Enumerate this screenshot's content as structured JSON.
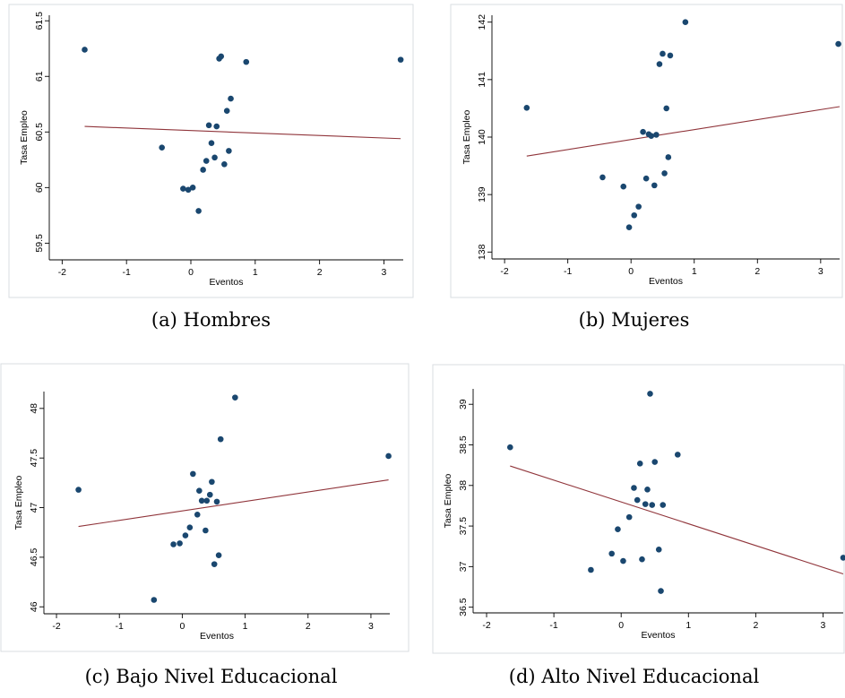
{
  "chart_data": [
    {
      "type": "scatter",
      "caption": "(a) Hombres",
      "xlabel": "Eventos",
      "ylabel": "Tasa Empleo",
      "xlim": [
        -2.2,
        3.3
      ],
      "ylim": [
        59.35,
        61.55
      ],
      "xticks": [
        -2,
        -1,
        0,
        1,
        2,
        3
      ],
      "yticks": [
        59.5,
        60,
        60.5,
        61,
        61.5
      ],
      "ytick_labels": [
        "59.5",
        "60",
        "60.5",
        "61",
        "61.5"
      ],
      "points": [
        [
          -1.65,
          61.24
        ],
        [
          -0.45,
          60.36
        ],
        [
          -0.12,
          59.99
        ],
        [
          -0.04,
          59.98
        ],
        [
          0.03,
          60.0
        ],
        [
          0.12,
          59.79
        ],
        [
          0.19,
          60.16
        ],
        [
          0.24,
          60.24
        ],
        [
          0.28,
          60.56
        ],
        [
          0.32,
          60.4
        ],
        [
          0.37,
          60.27
        ],
        [
          0.4,
          60.55
        ],
        [
          0.44,
          61.16
        ],
        [
          0.47,
          61.18
        ],
        [
          0.52,
          60.21
        ],
        [
          0.56,
          60.69
        ],
        [
          0.59,
          60.33
        ],
        [
          0.62,
          60.8
        ],
        [
          0.86,
          61.13
        ],
        [
          3.26,
          61.15
        ]
      ],
      "fit_line": [
        [
          -1.65,
          60.55
        ],
        [
          3.26,
          60.44
        ]
      ]
    },
    {
      "type": "scatter",
      "caption": "(b) Mujeres",
      "xlabel": "Eventos",
      "ylabel": "Tasa Empleo",
      "xlim": [
        -2.2,
        3.3
      ],
      "ylim": [
        137.88,
        142.12
      ],
      "xticks": [
        -2,
        -1,
        0,
        1,
        2,
        3
      ],
      "yticks": [
        138,
        139,
        140,
        141,
        142
      ],
      "ytick_labels": [
        "138",
        "139",
        "140",
        "141",
        "142"
      ],
      "points": [
        [
          -1.65,
          140.51
        ],
        [
          -0.45,
          139.3
        ],
        [
          -0.12,
          139.14
        ],
        [
          -0.03,
          138.43
        ],
        [
          0.05,
          138.64
        ],
        [
          0.12,
          138.79
        ],
        [
          0.19,
          140.09
        ],
        [
          0.24,
          139.28
        ],
        [
          0.28,
          140.05
        ],
        [
          0.32,
          140.02
        ],
        [
          0.37,
          139.16
        ],
        [
          0.4,
          140.04
        ],
        [
          0.45,
          141.27
        ],
        [
          0.5,
          141.45
        ],
        [
          0.53,
          139.37
        ],
        [
          0.56,
          140.5
        ],
        [
          0.59,
          139.65
        ],
        [
          0.62,
          141.42
        ],
        [
          0.86,
          142.0
        ],
        [
          3.28,
          141.62
        ]
      ],
      "fit_line": [
        [
          -1.65,
          139.67
        ],
        [
          3.3,
          140.53
        ]
      ]
    },
    {
      "type": "scatter",
      "caption": "(c) Bajo Nivel Educacional",
      "xlabel": "Eventos",
      "ylabel": "Tasa Empleo",
      "xlim": [
        -2.2,
        3.3
      ],
      "ylim": [
        45.93,
        48.17
      ],
      "xticks": [
        -2,
        -1,
        0,
        1,
        2,
        3
      ],
      "yticks": [
        46,
        46.5,
        47,
        47.5,
        48
      ],
      "ytick_labels": [
        "46",
        "46.5",
        "47",
        "47.5",
        "48"
      ],
      "points": [
        [
          -1.65,
          47.18
        ],
        [
          -0.45,
          46.07
        ],
        [
          -0.14,
          46.63
        ],
        [
          -0.04,
          46.64
        ],
        [
          0.05,
          46.72
        ],
        [
          0.12,
          46.8
        ],
        [
          0.17,
          47.34
        ],
        [
          0.24,
          46.93
        ],
        [
          0.27,
          47.17
        ],
        [
          0.31,
          47.07
        ],
        [
          0.37,
          46.77
        ],
        [
          0.39,
          47.07
        ],
        [
          0.44,
          47.13
        ],
        [
          0.47,
          47.26
        ],
        [
          0.51,
          46.43
        ],
        [
          0.55,
          47.06
        ],
        [
          0.58,
          46.52
        ],
        [
          0.61,
          47.69
        ],
        [
          0.84,
          48.11
        ],
        [
          3.28,
          47.52
        ]
      ],
      "fit_line": [
        [
          -1.65,
          46.81
        ],
        [
          3.28,
          47.28
        ]
      ]
    },
    {
      "type": "scatter",
      "caption": "(d) Alto Nivel Educacional",
      "xlabel": "Eventos",
      "ylabel": "Tasa Empleo",
      "xlim": [
        -2.2,
        3.3
      ],
      "ylim": [
        36.43,
        39.19
      ],
      "xticks": [
        -2,
        -1,
        0,
        1,
        2,
        3
      ],
      "yticks": [
        36.5,
        37,
        37.5,
        38,
        38.5,
        39
      ],
      "ytick_labels": [
        "36.5",
        "37",
        "37.5",
        "38",
        "38.5",
        "39"
      ],
      "points": [
        [
          -1.65,
          38.47
        ],
        [
          -0.45,
          36.96
        ],
        [
          -0.14,
          37.16
        ],
        [
          -0.05,
          37.46
        ],
        [
          0.03,
          37.07
        ],
        [
          0.12,
          37.61
        ],
        [
          0.19,
          37.97
        ],
        [
          0.24,
          37.82
        ],
        [
          0.28,
          38.27
        ],
        [
          0.31,
          37.09
        ],
        [
          0.36,
          37.77
        ],
        [
          0.39,
          37.95
        ],
        [
          0.43,
          39.13
        ],
        [
          0.46,
          37.76
        ],
        [
          0.5,
          38.29
        ],
        [
          0.56,
          37.21
        ],
        [
          0.59,
          36.7
        ],
        [
          0.62,
          37.76
        ],
        [
          0.84,
          38.38
        ],
        [
          3.3,
          37.11
        ]
      ],
      "fit_line": [
        [
          -1.65,
          38.24
        ],
        [
          3.3,
          36.91
        ]
      ]
    }
  ]
}
